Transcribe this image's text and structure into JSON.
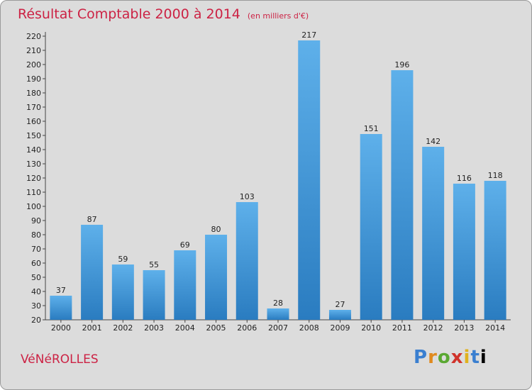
{
  "header": {
    "title": "Résultat Comptable 2000 à 2014",
    "subtitle": "(en milliers d'€)"
  },
  "footer": {
    "commune": "VéNéROLLES",
    "logo_text": "Proxiti"
  },
  "colors": {
    "title": "#cc2244",
    "bar_top": "#5eb0ea",
    "bar_bottom": "#2a7cc0",
    "background": "#dcdcdc"
  },
  "chart_data": {
    "type": "bar",
    "categories": [
      "2000",
      "2001",
      "2002",
      "2003",
      "2004",
      "2005",
      "2006",
      "2007",
      "2008",
      "2009",
      "2010",
      "2011",
      "2012",
      "2013",
      "2014"
    ],
    "values": [
      37,
      87,
      59,
      55,
      69,
      80,
      103,
      28,
      217,
      27,
      151,
      196,
      142,
      116,
      118
    ],
    "ylim": [
      20,
      220
    ],
    "ytick_step": 10,
    "grid": false,
    "legend": "none"
  }
}
